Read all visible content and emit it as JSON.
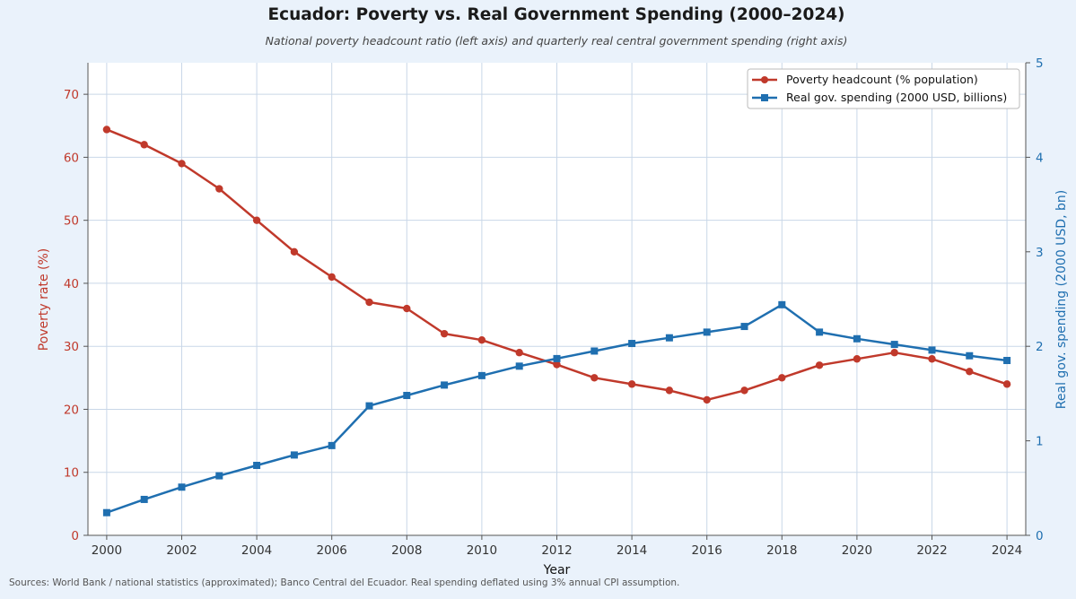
{
  "chart_data": {
    "type": "line",
    "title": "Ecuador: Poverty vs. Real Government Spending (2000–2024)",
    "subtitle": "National poverty headcount ratio (left axis) and quarterly real central government spending (right axis)",
    "source": "Sources: World Bank / national statistics (approximated); Banco Central del Ecuador. Real spending deflated using 3% annual CPI assumption.",
    "xlabel": "Year",
    "ylabel_left": "Poverty rate (%)",
    "ylabel_right": "Real gov. spending (2000 USD, bn)",
    "xlim": [
      1999.5,
      2024.5
    ],
    "ylim_left": [
      0,
      75
    ],
    "ylim_right": [
      0,
      5
    ],
    "x_ticks": [
      2000,
      2002,
      2004,
      2006,
      2008,
      2010,
      2012,
      2014,
      2016,
      2018,
      2020,
      2022,
      2024
    ],
    "y_left_ticks": [
      0,
      10,
      20,
      30,
      40,
      50,
      60,
      70
    ],
    "y_right_ticks": [
      0,
      1,
      2,
      3,
      4,
      5
    ],
    "grid": true,
    "legend_position": "top-right",
    "colors": {
      "poverty": "#c0392b",
      "spending": "#1f6fb0"
    },
    "x": [
      2000,
      2001,
      2002,
      2003,
      2004,
      2005,
      2006,
      2007,
      2008,
      2009,
      2010,
      2011,
      2012,
      2013,
      2014,
      2015,
      2016,
      2017,
      2018,
      2019,
      2020,
      2021,
      2022,
      2023,
      2024
    ],
    "series": [
      {
        "name": "Poverty headcount (% population)",
        "axis": "left",
        "marker": "circle",
        "values": [
          64.4,
          62.0,
          59.0,
          55.0,
          50.0,
          45.0,
          41.0,
          37.0,
          36.0,
          32.0,
          31.0,
          29.0,
          27.1,
          25.0,
          24.0,
          23.0,
          21.5,
          23.0,
          25.0,
          27.0,
          28.0,
          29.0,
          28.0,
          26.0,
          24.0
        ]
      },
      {
        "name": "Real gov. spending (2000 USD, billions)",
        "axis": "right",
        "marker": "square",
        "values": [
          0.24,
          0.38,
          0.51,
          0.63,
          0.74,
          0.85,
          0.95,
          1.37,
          1.48,
          1.59,
          1.69,
          1.79,
          1.87,
          1.95,
          2.03,
          2.09,
          2.15,
          2.21,
          2.44,
          2.15,
          2.08,
          2.02,
          1.96,
          1.9,
          1.85
        ]
      }
    ]
  }
}
